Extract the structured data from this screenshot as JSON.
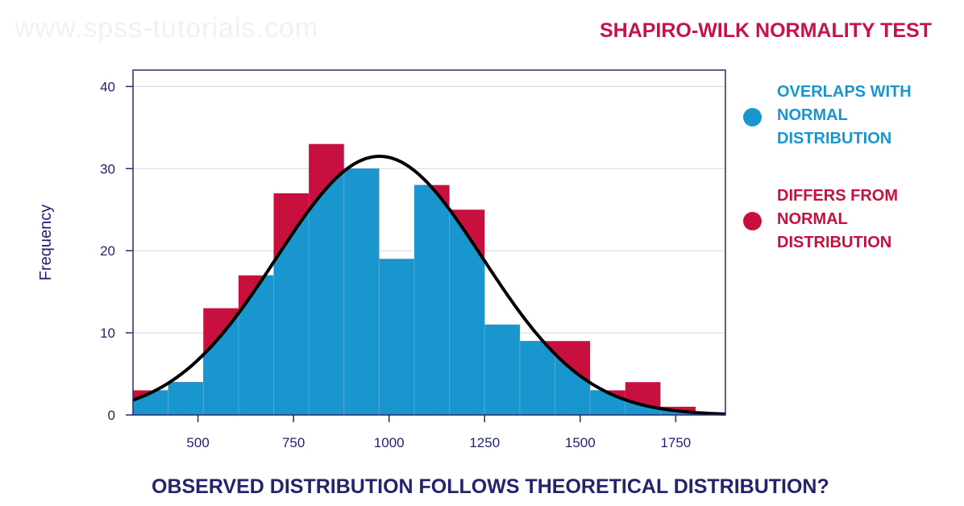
{
  "watermark": "www.spss-tutorials.com",
  "title": "SHAPIRO-WILK NORMALITY TEST",
  "question": "OBSERVED DISTRIBUTION FOLLOWS THEORETICAL DISTRIBUTION?",
  "legend": {
    "overlap": {
      "lines": [
        "OVERLAPS WITH",
        "NORMAL",
        "DISTRIBUTION"
      ],
      "color": "#1a96cf"
    },
    "differ": {
      "lines": [
        "DIFFERS FROM",
        "NORMAL",
        "DISTRIBUTION"
      ],
      "color": "#c8103f"
    }
  },
  "colors": {
    "axis_text": "#23236e",
    "frame": "#2a2a6a",
    "grid": "#d8dbe4",
    "curve": "#000000"
  },
  "chart_data": {
    "type": "bar",
    "title": "",
    "xlabel": "",
    "ylabel": "Frequency",
    "xlim": [
      330,
      1880
    ],
    "ylim": [
      0,
      42
    ],
    "xticks": [
      500,
      750,
      1000,
      1250,
      1500,
      1750
    ],
    "yticks": [
      0,
      10,
      20,
      30,
      40
    ],
    "grid": true,
    "bin_width": 92,
    "bins": [
      {
        "start": 330,
        "observed": 3
      },
      {
        "start": 422,
        "observed": 4
      },
      {
        "start": 514,
        "observed": 13
      },
      {
        "start": 606,
        "observed": 17
      },
      {
        "start": 698,
        "observed": 27
      },
      {
        "start": 790,
        "observed": 33
      },
      {
        "start": 882,
        "observed": 30
      },
      {
        "start": 974,
        "observed": 19
      },
      {
        "start": 1066,
        "observed": 28
      },
      {
        "start": 1158,
        "observed": 25
      },
      {
        "start": 1250,
        "observed": 11
      },
      {
        "start": 1342,
        "observed": 9
      },
      {
        "start": 1434,
        "observed": 9
      },
      {
        "start": 1526,
        "observed": 3
      },
      {
        "start": 1618,
        "observed": 4
      },
      {
        "start": 1710,
        "observed": 1
      }
    ],
    "normal_curve": {
      "mean": 975,
      "sd": 270,
      "peak": 31.5
    }
  }
}
